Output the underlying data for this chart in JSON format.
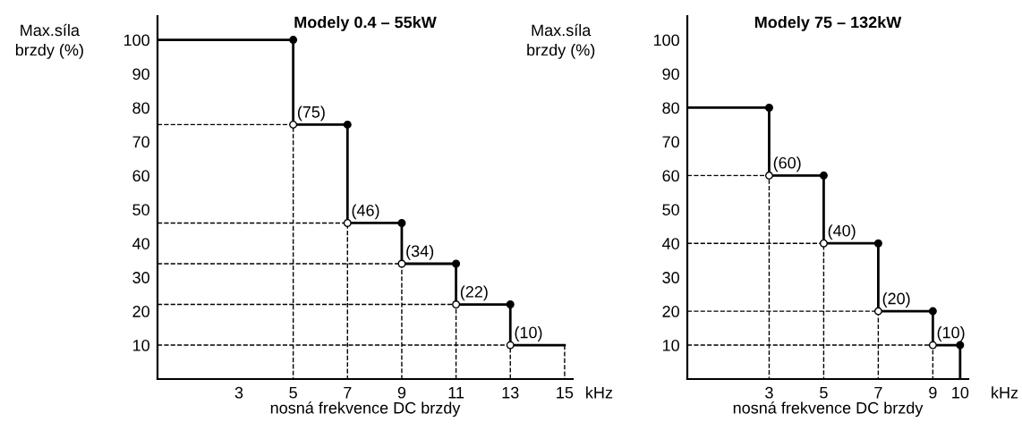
{
  "chart_data": [
    {
      "type": "step",
      "title": "Modely 0.4 – 55kW",
      "ylabel": "Max.síla\nbrzdy (%)",
      "xlabel": "nosná frekvence DC brzdy",
      "xlim": [
        0,
        15.3
      ],
      "ylim": [
        0,
        107
      ],
      "xticks": [
        3,
        5,
        7,
        9,
        11,
        13,
        15
      ],
      "yticks": [
        10,
        20,
        30,
        40,
        50,
        60,
        70,
        80,
        90,
        100
      ],
      "grid": false,
      "legend": false,
      "series": [
        {
          "type": "line",
          "line_style": "dashed",
          "marker": "none",
          "color": "#000000",
          "x": [
            0,
            5,
            5,
            null,
            0,
            7,
            7,
            null,
            0,
            9,
            9,
            null,
            0,
            11,
            11,
            null,
            0,
            13,
            13,
            null,
            15,
            15
          ],
          "values": [
            75,
            75,
            0,
            null,
            46,
            46,
            0,
            null,
            34,
            34,
            0,
            null,
            22,
            22,
            0,
            null,
            10,
            10,
            0,
            null,
            10,
            0
          ]
        },
        {
          "type": "step",
          "line_style": "solid",
          "marker": "none",
          "color": "#000000",
          "x": [
            0,
            5,
            7,
            9,
            11,
            13,
            15
          ],
          "values": [
            100,
            75,
            46,
            34,
            22,
            10,
            10
          ]
        },
        {
          "type": "scatter",
          "marker": "circle",
          "color": "#000000",
          "x": [
            5,
            7,
            9,
            11,
            13
          ],
          "values": [
            100,
            75,
            46,
            34,
            22
          ]
        },
        {
          "type": "scatter",
          "marker": "circle",
          "color": "#ffffff",
          "x": [
            5,
            7,
            9,
            11,
            13
          ],
          "values": [
            75,
            46,
            34,
            22,
            10
          ]
        }
      ],
      "annotations": [
        "kHz",
        {
          "text": "(75)",
          "x": 5,
          "y": 75
        },
        {
          "text": "(46)",
          "x": 7,
          "y": 46
        },
        {
          "text": "(34)",
          "x": 9,
          "y": 34
        },
        {
          "text": "(22)",
          "x": 11,
          "y": 22
        },
        {
          "text": "(10)",
          "x": 13,
          "y": 10
        }
      ]
    },
    {
      "type": "step",
      "title": "Modely 75 – 132kW",
      "ylabel": "Max.síla\nbrzdy (%)",
      "xlabel": "nosná frekvence DC brzdy",
      "xlim": [
        0,
        10.3
      ],
      "ylim": [
        0,
        107
      ],
      "xticks": [
        3,
        5,
        7,
        9,
        10
      ],
      "yticks": [
        10,
        20,
        30,
        40,
        50,
        60,
        70,
        80,
        90,
        100
      ],
      "grid": false,
      "legend": false,
      "series": [
        {
          "type": "line",
          "line_style": "dashed",
          "marker": "none",
          "color": "#000000",
          "x": [
            0,
            3,
            3,
            null,
            0,
            5,
            5,
            null,
            0,
            7,
            7,
            null,
            0,
            9,
            9
          ],
          "values": [
            60,
            60,
            0,
            null,
            40,
            40,
            0,
            null,
            20,
            20,
            0,
            null,
            10,
            10,
            0
          ]
        },
        {
          "type": "step",
          "line_style": "solid",
          "marker": "none",
          "color": "#000000",
          "x": [
            0,
            3,
            5,
            7,
            9,
            10,
            10
          ],
          "values": [
            80,
            60,
            40,
            20,
            10,
            10,
            0
          ]
        },
        {
          "type": "scatter",
          "marker": "circle",
          "color": "#000000",
          "x": [
            3,
            5,
            7,
            9,
            10
          ],
          "values": [
            80,
            60,
            40,
            20,
            10
          ]
        },
        {
          "type": "scatter",
          "marker": "circle",
          "color": "#ffffff",
          "x": [
            3,
            5,
            7,
            9
          ],
          "values": [
            60,
            40,
            20,
            10
          ]
        }
      ],
      "annotations": [
        "kHz",
        {
          "text": "(60)",
          "x": 3,
          "y": 60
        },
        {
          "text": "(40)",
          "x": 5,
          "y": 40
        },
        {
          "text": "(20)",
          "x": 7,
          "y": 20
        },
        {
          "text": "(10)",
          "x": 9,
          "y": 10
        }
      ]
    }
  ]
}
